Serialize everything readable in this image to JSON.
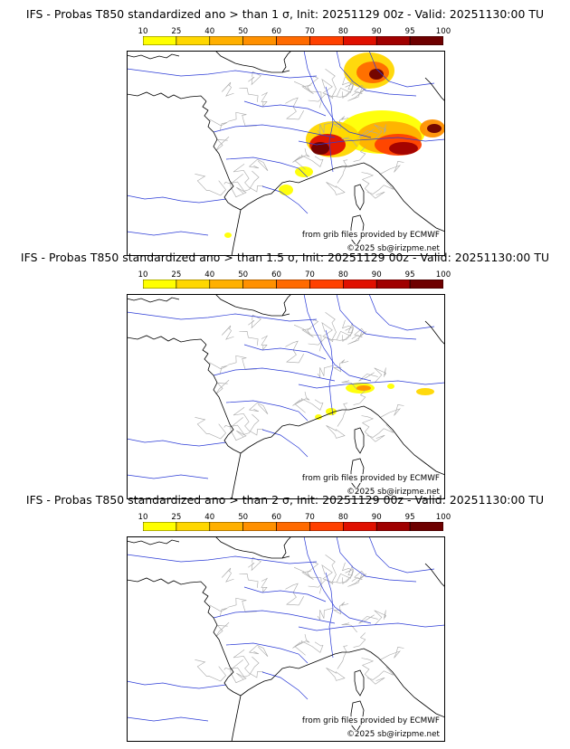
{
  "colorbar": {
    "tick_labels": [
      "10",
      "25",
      "40",
      "50",
      "60",
      "70",
      "80",
      "90",
      "95",
      "100"
    ],
    "colors": [
      "#ffff00",
      "#ffd700",
      "#ffb000",
      "#ff9000",
      "#ff6a00",
      "#ff4000",
      "#e01000",
      "#a00000",
      "#6e0000"
    ]
  },
  "map_colors": {
    "coast": "#000000",
    "rivers": "#2b3bd6",
    "borders": "#a8a8a8",
    "frame": "#000000"
  },
  "panels": [
    {
      "title": "IFS - Probas T850  standardized ano > than 1 σ, Init: 20251129 00z - Valid: 20251130:00 TU",
      "source_credit": "from grib files provided by ECMWF",
      "copyright": "©2025 sb@irizpme.net"
    },
    {
      "title": "IFS - Probas T850  standardized ano > than 1.5 σ, Init: 20251129 00z - Valid: 20251130:00 TU",
      "source_credit": "from grib files provided by ECMWF",
      "copyright": "©2025 sb@irizpme.net"
    },
    {
      "title": "IFS - Probas T850  standardized ano > than 2 σ, Init: 20251129 00z - Valid: 20251130:00 TU",
      "source_credit": "from grib files provided by ECMWF",
      "copyright": "©2025 sb@irizpme.net"
    }
  ]
}
